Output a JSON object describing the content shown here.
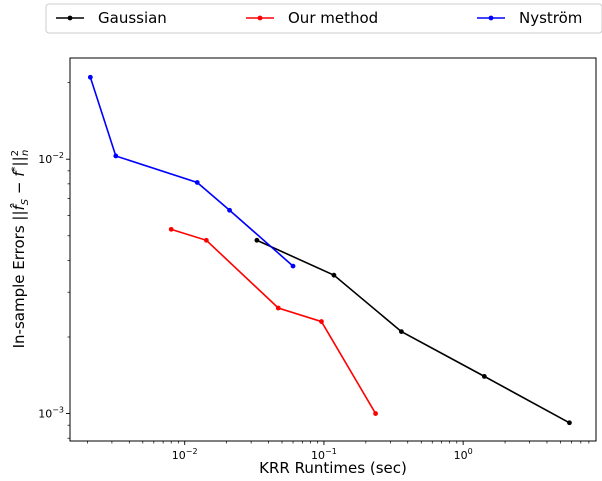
{
  "chart_data": {
    "type": "line",
    "title": "",
    "xlabel": "KRR Runtimes (sec)",
    "ylabel": "In-sample Errors ||f̂_S − f*||²_n",
    "x_scale": "log",
    "y_scale": "log",
    "xlim": [
      0.0015,
      9
    ],
    "ylim": [
      0.00078,
      0.025
    ],
    "x_ticks": [
      {
        "value": 0.01,
        "label_base": "10",
        "label_exp": "−2"
      },
      {
        "value": 0.1,
        "label_base": "10",
        "label_exp": "−1"
      },
      {
        "value": 1,
        "label_base": "10",
        "label_exp": "0"
      }
    ],
    "y_ticks": [
      {
        "value": 0.001,
        "label_base": "10",
        "label_exp": "−3"
      },
      {
        "value": 0.01,
        "label_base": "10",
        "label_exp": "−2"
      }
    ],
    "legend_position": "top, outside",
    "series": [
      {
        "name": "Gaussian",
        "color": "#000000",
        "x": [
          0.033,
          0.118,
          0.36,
          1.42,
          5.8
        ],
        "y": [
          0.0048,
          0.0035,
          0.0021,
          0.0014,
          0.00092
        ]
      },
      {
        "name": "Our method",
        "color": "#ff0000",
        "x": [
          0.008,
          0.0143,
          0.047,
          0.096,
          0.235
        ],
        "y": [
          0.0053,
          0.0048,
          0.0026,
          0.0023,
          0.001
        ]
      },
      {
        "name": "Nyström",
        "color": "#0000ff",
        "x": [
          0.0021,
          0.0032,
          0.0123,
          0.021,
          0.06
        ],
        "y": [
          0.021,
          0.0103,
          0.0081,
          0.0063,
          0.0038
        ]
      }
    ]
  }
}
